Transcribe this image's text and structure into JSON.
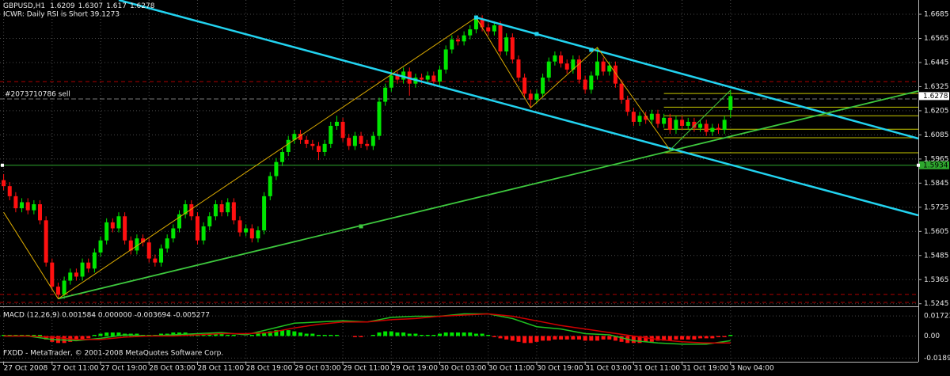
{
  "chart_data": [
    {
      "type": "candlestick",
      "symbol": "GBPUSD,H1",
      "annotation": "ICWR: Daily RSI is Short 39.1273",
      "footer": "FXDD - MetaTrader, © 2001-2008 MetaQuotes Software Corp.",
      "up_color": "#00e600",
      "down_color": "#ff1010",
      "grid": true,
      "xlim": [
        -0.6,
        151
      ],
      "ylim": [
        1.524,
        1.6756
      ],
      "yticks": [
        1.6685,
        1.6565,
        1.6445,
        1.6325,
        1.6205,
        1.6085,
        1.5965,
        1.5845,
        1.5725,
        1.5605,
        1.5485,
        1.5365,
        1.5245
      ],
      "xticks": [
        {
          "value": 0,
          "label": "27 Oct 2008"
        },
        {
          "value": 8,
          "label": "27 Oct 11:00"
        },
        {
          "value": 16,
          "label": "27 Oct 19:00"
        },
        {
          "value": 24,
          "label": "28 Oct 03:00"
        },
        {
          "value": 32,
          "label": "28 Oct 11:00"
        },
        {
          "value": 40,
          "label": "28 Oct 19:00"
        },
        {
          "value": 48,
          "label": "29 Oct 03:00"
        },
        {
          "value": 56,
          "label": "29 Oct 11:00"
        },
        {
          "value": 64,
          "label": "29 Oct 19:00"
        },
        {
          "value": 72,
          "label": "30 Oct 03:00"
        },
        {
          "value": 80,
          "label": "30 Oct 11:00"
        },
        {
          "value": 88,
          "label": "30 Oct 19:00"
        },
        {
          "value": 96,
          "label": "31 Oct 03:00"
        },
        {
          "value": 104,
          "label": "31 Oct 11:00"
        },
        {
          "value": 112,
          "label": "31 Oct 19:00"
        },
        {
          "value": 120,
          "label": "3 Nov 04:00"
        }
      ],
      "ohlc": [
        [
          1.586,
          1.589,
          1.581,
          1.583
        ],
        [
          1.583,
          1.585,
          1.576,
          1.578
        ],
        [
          1.578,
          1.58,
          1.57,
          1.572
        ],
        [
          1.572,
          1.577,
          1.57,
          1.575
        ],
        [
          1.575,
          1.577,
          1.569,
          1.571
        ],
        [
          1.571,
          1.576,
          1.569,
          1.574
        ],
        [
          1.574,
          1.576,
          1.564,
          1.566
        ],
        [
          1.566,
          1.568,
          1.543,
          1.545
        ],
        [
          1.545,
          1.547,
          1.531,
          1.533
        ],
        [
          1.533,
          1.535,
          1.527,
          1.529
        ],
        [
          1.529,
          1.538,
          1.527,
          1.536
        ],
        [
          1.536,
          1.542,
          1.534,
          1.54
        ],
        [
          1.54,
          1.542,
          1.536,
          1.538
        ],
        [
          1.538,
          1.547,
          1.536,
          1.545
        ],
        [
          1.545,
          1.547,
          1.54,
          1.542
        ],
        [
          1.542,
          1.552,
          1.54,
          1.55
        ],
        [
          1.55,
          1.558,
          1.548,
          1.556
        ],
        [
          1.556,
          1.567,
          1.554,
          1.565
        ],
        [
          1.565,
          1.567,
          1.56,
          1.562
        ],
        [
          1.562,
          1.57,
          1.56,
          1.568
        ],
        [
          1.568,
          1.57,
          1.554,
          1.556
        ],
        [
          1.556,
          1.558,
          1.549,
          1.551
        ],
        [
          1.551,
          1.559,
          1.549,
          1.557
        ],
        [
          1.557,
          1.559,
          1.553,
          1.555
        ],
        [
          1.555,
          1.557,
          1.545,
          1.547
        ],
        [
          1.547,
          1.549,
          1.543,
          1.545
        ],
        [
          1.545,
          1.554,
          1.543,
          1.552
        ],
        [
          1.552,
          1.559,
          1.55,
          1.557
        ],
        [
          1.557,
          1.564,
          1.555,
          1.562
        ],
        [
          1.562,
          1.571,
          1.56,
          1.569
        ],
        [
          1.569,
          1.576,
          1.567,
          1.574
        ],
        [
          1.574,
          1.576,
          1.566,
          1.568
        ],
        [
          1.568,
          1.57,
          1.554,
          1.556
        ],
        [
          1.556,
          1.565,
          1.554,
          1.563
        ],
        [
          1.563,
          1.57,
          1.561,
          1.568
        ],
        [
          1.568,
          1.576,
          1.566,
          1.574
        ],
        [
          1.574,
          1.576,
          1.568,
          1.57
        ],
        [
          1.57,
          1.577,
          1.568,
          1.575
        ],
        [
          1.575,
          1.577,
          1.564,
          1.566
        ],
        [
          1.566,
          1.568,
          1.558,
          1.56
        ],
        [
          1.56,
          1.564,
          1.558,
          1.562
        ],
        [
          1.562,
          1.564,
          1.555,
          1.557
        ],
        [
          1.557,
          1.563,
          1.555,
          1.561
        ],
        [
          1.561,
          1.58,
          1.559,
          1.578
        ],
        [
          1.578,
          1.59,
          1.576,
          1.588
        ],
        [
          1.588,
          1.597,
          1.586,
          1.595
        ],
        [
          1.595,
          1.602,
          1.593,
          1.6
        ],
        [
          1.6,
          1.608,
          1.598,
          1.606
        ],
        [
          1.606,
          1.611,
          1.604,
          1.609
        ],
        [
          1.609,
          1.611,
          1.604,
          1.606
        ],
        [
          1.606,
          1.608,
          1.602,
          1.604
        ],
        [
          1.604,
          1.606,
          1.601,
          1.603
        ],
        [
          1.603,
          1.605,
          1.596,
          1.6
        ],
        [
          1.6,
          1.606,
          1.598,
          1.604
        ],
        [
          1.604,
          1.615,
          1.602,
          1.613
        ],
        [
          1.613,
          1.618,
          1.611,
          1.615
        ],
        [
          1.615,
          1.617,
          1.605,
          1.607
        ],
        [
          1.607,
          1.609,
          1.601,
          1.603
        ],
        [
          1.603,
          1.61,
          1.601,
          1.608
        ],
        [
          1.608,
          1.61,
          1.602,
          1.604
        ],
        [
          1.604,
          1.606,
          1.601,
          1.603
        ],
        [
          1.603,
          1.61,
          1.601,
          1.608
        ],
        [
          1.608,
          1.627,
          1.606,
          1.625
        ],
        [
          1.625,
          1.634,
          1.623,
          1.632
        ],
        [
          1.632,
          1.641,
          1.63,
          1.638
        ],
        [
          1.638,
          1.64,
          1.634,
          1.636
        ],
        [
          1.636,
          1.642,
          1.634,
          1.64
        ],
        [
          1.64,
          1.642,
          1.628,
          1.634
        ],
        [
          1.634,
          1.639,
          1.632,
          1.637
        ],
        [
          1.637,
          1.639,
          1.634,
          1.636
        ],
        [
          1.636,
          1.64,
          1.634,
          1.638
        ],
        [
          1.638,
          1.64,
          1.633,
          1.635
        ],
        [
          1.635,
          1.643,
          1.633,
          1.641
        ],
        [
          1.641,
          1.653,
          1.639,
          1.651
        ],
        [
          1.651,
          1.658,
          1.649,
          1.656
        ],
        [
          1.656,
          1.658,
          1.653,
          1.655
        ],
        [
          1.655,
          1.66,
          1.653,
          1.658
        ],
        [
          1.658,
          1.663,
          1.656,
          1.661
        ],
        [
          1.661,
          1.668,
          1.659,
          1.666
        ],
        [
          1.666,
          1.668,
          1.66,
          1.662
        ],
        [
          1.662,
          1.664,
          1.658,
          1.66
        ],
        [
          1.66,
          1.665,
          1.658,
          1.663
        ],
        [
          1.663,
          1.665,
          1.648,
          1.65
        ],
        [
          1.65,
          1.659,
          1.648,
          1.657
        ],
        [
          1.657,
          1.659,
          1.644,
          1.646
        ],
        [
          1.646,
          1.648,
          1.635,
          1.637
        ],
        [
          1.637,
          1.639,
          1.627,
          1.629
        ],
        [
          1.629,
          1.631,
          1.622,
          1.626
        ],
        [
          1.626,
          1.631,
          1.624,
          1.629
        ],
        [
          1.629,
          1.639,
          1.627,
          1.637
        ],
        [
          1.637,
          1.647,
          1.635,
          1.645
        ],
        [
          1.645,
          1.65,
          1.643,
          1.648
        ],
        [
          1.648,
          1.65,
          1.642,
          1.644
        ],
        [
          1.644,
          1.646,
          1.639,
          1.641
        ],
        [
          1.641,
          1.648,
          1.639,
          1.646
        ],
        [
          1.646,
          1.648,
          1.634,
          1.636
        ],
        [
          1.636,
          1.638,
          1.629,
          1.631
        ],
        [
          1.631,
          1.64,
          1.629,
          1.638
        ],
        [
          1.638,
          1.652,
          1.636,
          1.645
        ],
        [
          1.645,
          1.647,
          1.638,
          1.64
        ],
        [
          1.64,
          1.645,
          1.638,
          1.643
        ],
        [
          1.643,
          1.645,
          1.632,
          1.634
        ],
        [
          1.634,
          1.636,
          1.624,
          1.626
        ],
        [
          1.626,
          1.628,
          1.618,
          1.62
        ],
        [
          1.62,
          1.622,
          1.613,
          1.615
        ],
        [
          1.615,
          1.62,
          1.613,
          1.618
        ],
        [
          1.618,
          1.62,
          1.614,
          1.616
        ],
        [
          1.616,
          1.621,
          1.614,
          1.619
        ],
        [
          1.619,
          1.621,
          1.612,
          1.614
        ],
        [
          1.614,
          1.619,
          1.612,
          1.617
        ],
        [
          1.617,
          1.619,
          1.609,
          1.611
        ],
        [
          1.611,
          1.618,
          1.609,
          1.616
        ],
        [
          1.616,
          1.618,
          1.611,
          1.613
        ],
        [
          1.613,
          1.617,
          1.611,
          1.615
        ],
        [
          1.615,
          1.617,
          1.61,
          1.612
        ],
        [
          1.612,
          1.616,
          1.61,
          1.614
        ],
        [
          1.614,
          1.616,
          1.608,
          1.61
        ],
        [
          1.61,
          1.614,
          1.608,
          1.612
        ],
        [
          1.612,
          1.614,
          1.609,
          1.611
        ],
        [
          1.611,
          1.618,
          1.609,
          1.616
        ],
        [
          1.6209,
          1.6307,
          1.617,
          1.6278
        ]
      ],
      "trendlines": [
        {
          "color": "#22d3f0",
          "width": 2.5,
          "points": [
            [
              19,
              1.6756
            ],
            [
              151,
              1.5685
            ]
          ]
        },
        {
          "color": "#22d3f0",
          "width": 2.5,
          "points": [
            [
              78,
              1.6669
            ],
            [
              151,
              1.6067
            ]
          ]
        },
        {
          "color": "#3ec83e",
          "width": 1.8,
          "points": [
            [
              9,
              1.527
            ],
            [
              151,
              1.6303
            ]
          ]
        },
        {
          "color": "#3ec83e",
          "width": 1,
          "points": [
            [
              110,
              1.601
            ],
            [
              120,
              1.6307
            ]
          ]
        },
        {
          "color": "#d8a800",
          "width": 1,
          "points": [
            [
              0,
              1.57
            ],
            [
              9,
              1.527
            ],
            [
              78,
              1.6669
            ],
            [
              87,
              1.622
            ],
            [
              98,
              1.652
            ],
            [
              110,
              1.601
            ]
          ]
        }
      ],
      "hlines": [
        {
          "price": 1.635,
          "color": "#b00000",
          "dash": true
        },
        {
          "price": 1.5291,
          "color": "#b00000",
          "dash": true
        },
        {
          "price": 1.5252,
          "color": "#b00000",
          "dash": true
        },
        {
          "price": 1.5934,
          "color": "#2ea82e",
          "dash": false,
          "boxed": true
        }
      ],
      "fib": {
        "from": 109,
        "color": "#c8c800",
        "levels": [
          1.6291,
          1.6223,
          1.618,
          1.6113,
          1.6071,
          1.5996
        ]
      },
      "markers": [
        {
          "x": 78,
          "price": 1.6669,
          "color": "#22d3f0"
        },
        {
          "x": 88,
          "price": 1.6587,
          "color": "#22d3f0"
        },
        {
          "x": 97,
          "price": 1.6508,
          "color": "#22d3f0"
        },
        {
          "x": 59,
          "price": 1.563,
          "color": "#3ec83e"
        }
      ],
      "order": {
        "label": "#2073710786 sell",
        "price": 1.6264
      }
    },
    {
      "type": "macd",
      "title": "MACD (12,26,9) 0.001584 0.000000 -0.003694 -0.005277",
      "ylim": [
        -0.0221,
        0.0241
      ],
      "yticks": [
        0.01723,
        {
          "value": 0,
          "label": "0.00"
        },
        -0.01894
      ],
      "up_color": "#00e600",
      "down_color": "#ff1010",
      "histogram": [
        0.001,
        0.001,
        0.001,
        0.001,
        0.001,
        0.001,
        0.001,
        -0.003,
        -0.005,
        -0.006,
        -0.006,
        -0.005,
        -0.004,
        -0.003,
        -0.002,
        0.001,
        0.002,
        0.003,
        0.003,
        0.003,
        0.002,
        0.002,
        0.002,
        0.001,
        0.001,
        0.001,
        0.002,
        0.002,
        0.003,
        0.003,
        0.003,
        0.002,
        0.001,
        0.001,
        0.002,
        0.002,
        0.002,
        0.001,
        0.001,
        0,
        0,
        0.001,
        0.002,
        0.003,
        0.004,
        0.005,
        0.005,
        0.005,
        0.004,
        0.003,
        0.002,
        0.002,
        0.001,
        0.001,
        0.001,
        0.001,
        0,
        0,
        -0.001,
        -0.001,
        0,
        0.001,
        0.003,
        0.004,
        0.004,
        0.003,
        0.003,
        0.002,
        0.002,
        0.001,
        0.001,
        0.001,
        0.002,
        0.003,
        0.003,
        0.003,
        0.003,
        0.003,
        0.002,
        0.002,
        0.001,
        -0.001,
        -0.002,
        -0.003,
        -0.004,
        -0.005,
        -0.006,
        -0.006,
        -0.005,
        -0.004,
        -0.004,
        -0.003,
        -0.003,
        -0.003,
        -0.003,
        -0.003,
        -0.004,
        -0.004,
        -0.004,
        -0.003,
        -0.003,
        -0.004,
        -0.005,
        -0.006,
        -0.006,
        -0.006,
        -0.005,
        -0.005,
        -0.004,
        -0.004,
        -0.004,
        -0.003,
        -0.003,
        -0.003,
        -0.003,
        -0.002,
        -0.002,
        -0.002,
        -0.001,
        -0.001,
        0.001
      ],
      "x": [
        0,
        4,
        8,
        12,
        16,
        20,
        24,
        28,
        32,
        36,
        40,
        44,
        48,
        52,
        56,
        60,
        64,
        68,
        72,
        76,
        80,
        84,
        88,
        92,
        96,
        100,
        104,
        108,
        112,
        116,
        120
      ],
      "series": [
        {
          "color": "#20c020",
          "values": [
            0,
            0,
            -0.003,
            -0.004,
            -0.002,
            0.001,
            0,
            0.001,
            0.002,
            0.003,
            0.001,
            0.006,
            0.011,
            0.012,
            0.013,
            0.012,
            0.016,
            0.017,
            0.017,
            0.019,
            0.019,
            0.015,
            0.008,
            0.006,
            0.002,
            0.001,
            -0.004,
            -0.006,
            -0.007,
            -0.007,
            -0.004
          ]
        },
        {
          "color": "#d00000",
          "values": [
            0,
            0,
            -0.001,
            -0.003,
            -0.003,
            -0.001,
            0,
            0,
            0.001,
            0.002,
            0.002,
            0.003,
            0.007,
            0.01,
            0.012,
            0.012,
            0.014,
            0.015,
            0.017,
            0.018,
            0.019,
            0.017,
            0.013,
            0.009,
            0.006,
            0.003,
            0,
            -0.003,
            -0.005,
            -0.006,
            -0.006
          ]
        }
      ]
    }
  ]
}
